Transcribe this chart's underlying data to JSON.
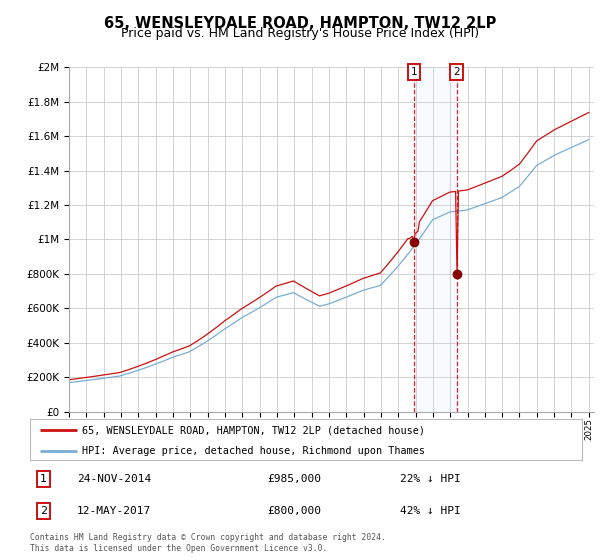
{
  "title": "65, WENSLEYDALE ROAD, HAMPTON, TW12 2LP",
  "subtitle": "Price paid vs. HM Land Registry's House Price Index (HPI)",
  "legend_line1": "65, WENSLEYDALE ROAD, HAMPTON, TW12 2LP (detached house)",
  "legend_line2": "HPI: Average price, detached house, Richmond upon Thames",
  "transaction1_date": "24-NOV-2014",
  "transaction1_price": 985000,
  "transaction1_pct": "22% ↓ HPI",
  "transaction2_date": "12-MAY-2017",
  "transaction2_price": 800000,
  "transaction2_pct": "42% ↓ HPI",
  "hpi_color": "#7aadd4",
  "price_color": "#cc1111",
  "marker_color": "#880000",
  "vline_color": "#dd0000",
  "shade_color": "#ddeeff",
  "background_color": "#ffffff",
  "grid_color": "#cccccc",
  "title_fontsize": 10.5,
  "subtitle_fontsize": 9,
  "footer_text": "Contains HM Land Registry data © Crown copyright and database right 2024.\nThis data is licensed under the Open Government Licence v3.0.",
  "ylim_max": 2000000,
  "year_start": 1995,
  "year_end": 2025,
  "transaction1_year": 2014.9,
  "transaction2_year": 2017.37,
  "yticks": [
    0,
    200000,
    400000,
    600000,
    800000,
    1000000,
    1200000,
    1400000,
    1600000,
    1800000,
    2000000
  ]
}
